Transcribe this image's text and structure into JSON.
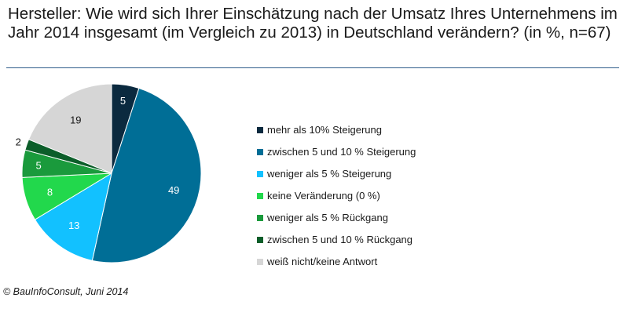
{
  "chart_data": {
    "type": "pie",
    "title": "Hersteller: Wie wird sich Ihrer Einschätzung nach der Umsatz Ihres Unternehmens im Jahr 2014 insgesamt (im Vergleich zu 2013) in Deutschland verändern? (in %, n=67)",
    "categories": [
      "mehr als 10% Steigerung",
      "zwischen 5 und 10 % Steigerung",
      "weniger als 5 % Steigerung",
      "keine Veränderung (0 %)",
      "weniger als 5 % Rückgang",
      "zwischen 5 und 10 % Rückgang",
      "weiß nicht/keine Antwort"
    ],
    "values": [
      5,
      49,
      13,
      8,
      5,
      2,
      19
    ],
    "colors": [
      "#0b2a3f",
      "#006e96",
      "#12c1ff",
      "#22d84c",
      "#1a9a3c",
      "#0c5e2a",
      "#d6d6d6"
    ],
    "label_colors": [
      "#ffffff",
      "#ffffff",
      "#ffffff",
      "#ffffff",
      "#ffffff",
      "#1a1a1a",
      "#1a1a1a"
    ],
    "legend_position": "right"
  },
  "footer": "© BauInfoConsult, Juni 2014"
}
